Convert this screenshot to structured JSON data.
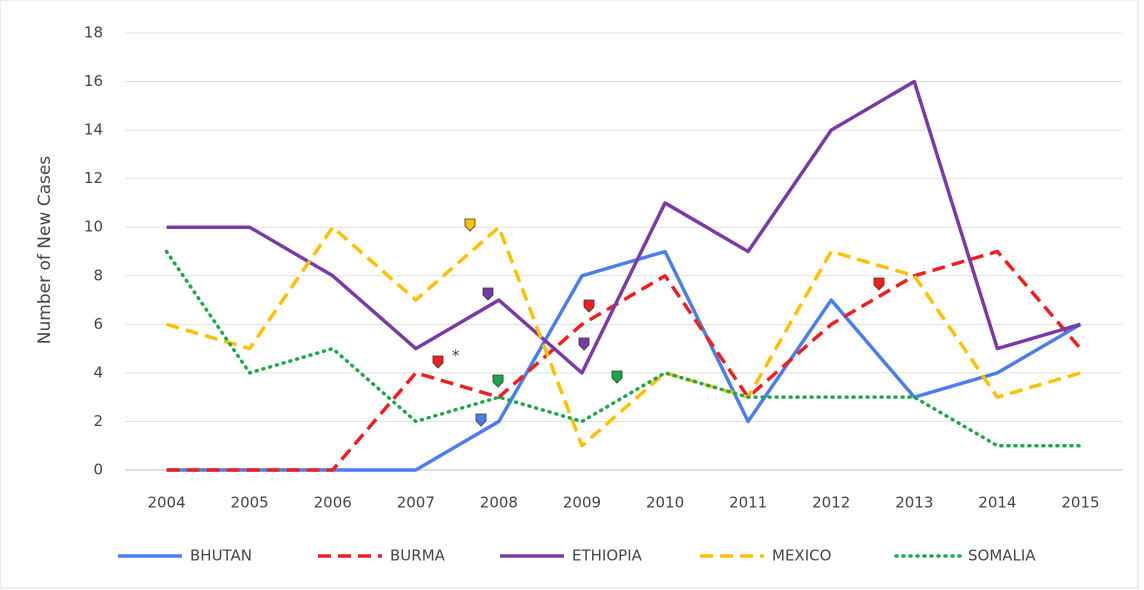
{
  "chart_data": {
    "type": "line",
    "y_label": "Number of New Cases",
    "categories": [
      "2004",
      "2005",
      "2006",
      "2007",
      "2008",
      "2009",
      "2010",
      "2011",
      "2012",
      "2013",
      "2014",
      "2015"
    ],
    "series": [
      {
        "name": "BHUTAN",
        "color": "#4a7ef0",
        "dash": "solid",
        "values": [
          0,
          0,
          0,
          0,
          2,
          8,
          9,
          2,
          7,
          3,
          4,
          6
        ]
      },
      {
        "name": "BURMA",
        "color": "#f01e1e",
        "dash": "dashed",
        "values": [
          0,
          0,
          0,
          4,
          3,
          6,
          8,
          3,
          6,
          8,
          9,
          5
        ]
      },
      {
        "name": "ETHIOPIA",
        "color": "#7a3aa6",
        "dash": "solid",
        "values": [
          10,
          10,
          8,
          5,
          7,
          4,
          11,
          9,
          14,
          16,
          5,
          6
        ]
      },
      {
        "name": "MEXICO",
        "color": "#ffc000",
        "dash": "dashed",
        "values": [
          6,
          5,
          10,
          7,
          10,
          1,
          4,
          3,
          9,
          8,
          3,
          4
        ]
      },
      {
        "name": "SOMALIA",
        "color": "#1ca84a",
        "dash": "dotted",
        "values": [
          9,
          4,
          5,
          2,
          3,
          2,
          4,
          3,
          3,
          3,
          1,
          1
        ]
      }
    ],
    "ylim": [
      0,
      18
    ],
    "yticks": [
      0,
      2,
      4,
      6,
      8,
      10,
      12,
      14,
      16,
      18
    ],
    "grid": true,
    "legend": "bottom",
    "annotation": "*"
  }
}
